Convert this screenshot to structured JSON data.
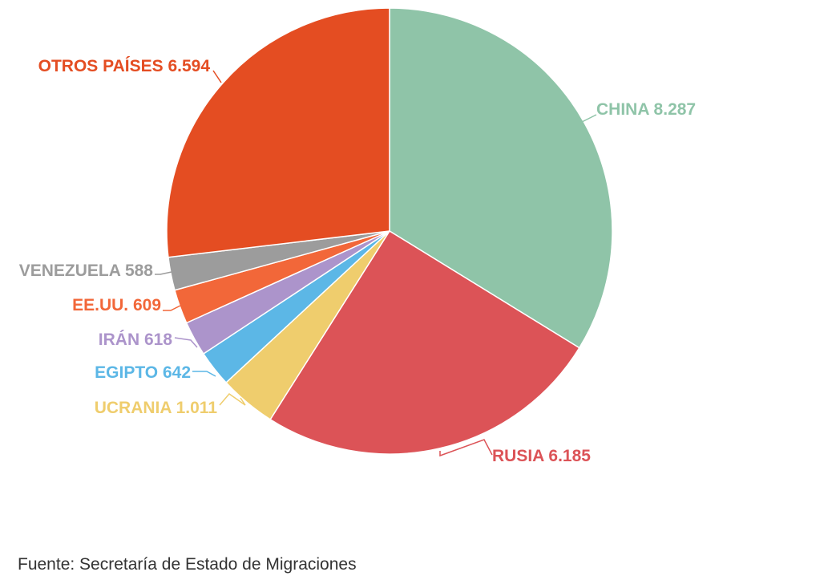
{
  "chart_data": {
    "type": "pie",
    "slices": [
      {
        "label": "CHINA",
        "value": 8287,
        "value_text": "8.287",
        "color": "#8fc4a8"
      },
      {
        "label": "RUSIA",
        "value": 6185,
        "value_text": "6.185",
        "color": "#dc5357"
      },
      {
        "label": "UCRANIA",
        "value": 1011,
        "value_text": "1.011",
        "color": "#efcd6d"
      },
      {
        "label": "EGIPTO",
        "value": 642,
        "value_text": "642",
        "color": "#5cb7e6"
      },
      {
        "label": "IRÁN",
        "value": 618,
        "value_text": "618",
        "color": "#ac94cb"
      },
      {
        "label": "EE.UU.",
        "value": 609,
        "value_text": "609",
        "color": "#f26739"
      },
      {
        "label": "VENEZUELA",
        "value": 588,
        "value_text": "588",
        "color": "#9c9c9c"
      },
      {
        "label": "OTROS PAÍSES",
        "value": 6594,
        "value_text": "6.594",
        "color": "#e44d22"
      }
    ]
  },
  "source": "Fuente: Secretaría de Estado de Migraciones"
}
